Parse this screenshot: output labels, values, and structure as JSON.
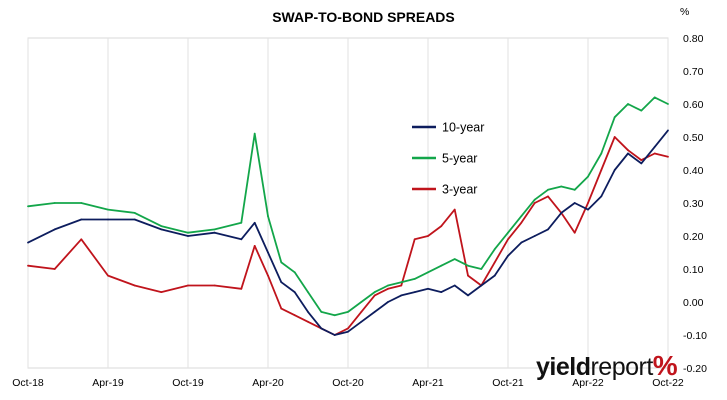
{
  "chart_data": {
    "type": "line",
    "title": "SWAP-TO-BOND SPREADS",
    "ylabel": "%",
    "xlabel": "",
    "ylim": [
      -0.2,
      0.8
    ],
    "y_ticks": [
      -0.2,
      -0.1,
      0.0,
      0.1,
      0.2,
      0.3,
      0.4,
      0.5,
      0.6,
      0.7,
      0.8
    ],
    "y_tick_labels": [
      "-0.20",
      "-0.10",
      "0.00",
      "0.10",
      "0.20",
      "0.30",
      "0.40",
      "0.50",
      "0.60",
      "0.70",
      "0.80"
    ],
    "x_range": [
      "2018-10",
      "2022-10"
    ],
    "x_ticks": [
      "Oct-18",
      "Apr-19",
      "Oct-19",
      "Apr-20",
      "Oct-20",
      "Apr-21",
      "Oct-21",
      "Apr-22",
      "Oct-22"
    ],
    "grid": "vertical",
    "legend_position": "center-right",
    "series": [
      {
        "name": "10-year",
        "color": "#0d1d5e",
        "x": [
          "2018-10",
          "2018-12",
          "2019-02",
          "2019-04",
          "2019-06",
          "2019-08",
          "2019-10",
          "2019-12",
          "2020-02",
          "2020-03",
          "2020-04",
          "2020-05",
          "2020-06",
          "2020-07",
          "2020-08",
          "2020-09",
          "2020-10",
          "2020-11",
          "2020-12",
          "2021-01",
          "2021-02",
          "2021-03",
          "2021-04",
          "2021-05",
          "2021-06",
          "2021-07",
          "2021-08",
          "2021-09",
          "2021-10",
          "2021-11",
          "2021-12",
          "2022-01",
          "2022-02",
          "2022-03",
          "2022-04",
          "2022-05",
          "2022-06",
          "2022-07",
          "2022-08",
          "2022-09",
          "2022-10"
        ],
        "values": [
          0.18,
          0.22,
          0.25,
          0.25,
          0.25,
          0.22,
          0.2,
          0.21,
          0.19,
          0.24,
          0.15,
          0.06,
          0.03,
          -0.03,
          -0.08,
          -0.1,
          -0.09,
          -0.06,
          -0.03,
          0.0,
          0.02,
          0.03,
          0.04,
          0.03,
          0.05,
          0.02,
          0.05,
          0.08,
          0.14,
          0.18,
          0.2,
          0.22,
          0.27,
          0.3,
          0.28,
          0.32,
          0.4,
          0.45,
          0.42,
          0.47,
          0.52
        ]
      },
      {
        "name": "5-year",
        "color": "#13a64a",
        "x": [
          "2018-10",
          "2018-12",
          "2019-02",
          "2019-04",
          "2019-06",
          "2019-08",
          "2019-10",
          "2019-12",
          "2020-02",
          "2020-03",
          "2020-04",
          "2020-05",
          "2020-06",
          "2020-07",
          "2020-08",
          "2020-09",
          "2020-10",
          "2020-11",
          "2020-12",
          "2021-01",
          "2021-02",
          "2021-03",
          "2021-04",
          "2021-05",
          "2021-06",
          "2021-07",
          "2021-08",
          "2021-09",
          "2021-10",
          "2021-11",
          "2021-12",
          "2022-01",
          "2022-02",
          "2022-03",
          "2022-04",
          "2022-05",
          "2022-06",
          "2022-07",
          "2022-08",
          "2022-09",
          "2022-10"
        ],
        "values": [
          0.29,
          0.3,
          0.3,
          0.28,
          0.27,
          0.23,
          0.21,
          0.22,
          0.24,
          0.51,
          0.26,
          0.12,
          0.09,
          0.03,
          -0.03,
          -0.04,
          -0.03,
          0.0,
          0.03,
          0.05,
          0.06,
          0.07,
          0.09,
          0.11,
          0.13,
          0.11,
          0.1,
          0.16,
          0.21,
          0.26,
          0.31,
          0.34,
          0.35,
          0.34,
          0.38,
          0.45,
          0.56,
          0.6,
          0.58,
          0.62,
          0.6
        ]
      },
      {
        "name": "3-year",
        "color": "#c0141c",
        "x": [
          "2018-10",
          "2018-12",
          "2019-02",
          "2019-04",
          "2019-06",
          "2019-08",
          "2019-10",
          "2019-12",
          "2020-02",
          "2020-03",
          "2020-04",
          "2020-05",
          "2020-06",
          "2020-07",
          "2020-08",
          "2020-09",
          "2020-10",
          "2020-11",
          "2020-12",
          "2021-01",
          "2021-02",
          "2021-03",
          "2021-04",
          "2021-05",
          "2021-06",
          "2021-07",
          "2021-08",
          "2021-09",
          "2021-10",
          "2021-11",
          "2021-12",
          "2022-01",
          "2022-02",
          "2022-03",
          "2022-04",
          "2022-05",
          "2022-06",
          "2022-07",
          "2022-08",
          "2022-09",
          "2022-10"
        ],
        "values": [
          0.11,
          0.1,
          0.19,
          0.08,
          0.05,
          0.03,
          0.05,
          0.05,
          0.04,
          0.17,
          0.08,
          -0.02,
          -0.04,
          -0.06,
          -0.08,
          -0.1,
          -0.08,
          -0.03,
          0.02,
          0.04,
          0.05,
          0.19,
          0.2,
          0.23,
          0.28,
          0.08,
          0.05,
          0.12,
          0.19,
          0.24,
          0.3,
          0.32,
          0.27,
          0.21,
          0.3,
          0.4,
          0.5,
          0.46,
          0.43,
          0.45,
          0.44
        ]
      }
    ]
  },
  "watermark": {
    "part1": "yield",
    "part2": "report",
    "part3": "%"
  }
}
